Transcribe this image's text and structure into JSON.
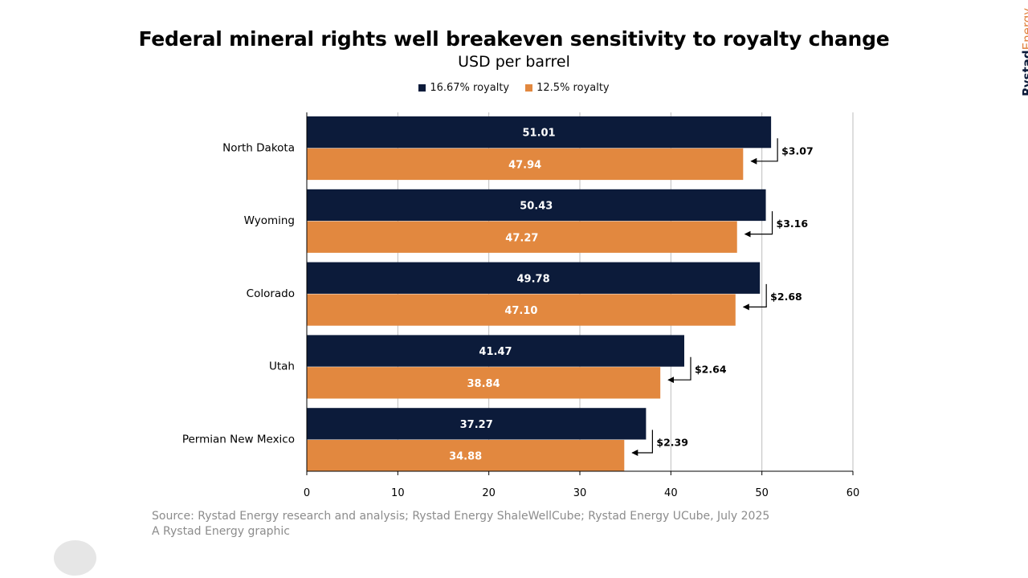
{
  "brand": {
    "main": "Rystad",
    "accent": "Energy"
  },
  "source": {
    "line1": "Source: Rystad Energy research and analysis; Rystad Energy ShaleWellCube; Rystad Energy UCube, July 2025",
    "line2": "A Rystad Energy graphic"
  },
  "colors": {
    "series1": "#0c1b3a",
    "series2": "#e2883f",
    "grid": "#bdbdbd"
  },
  "chart_data": {
    "type": "bar",
    "orientation": "horizontal",
    "title": "Federal mineral rights well breakeven sensitivity to royalty change",
    "subtitle": "USD per barrel",
    "categories": [
      "North Dakota",
      "Wyoming",
      "Colorado",
      "Utah",
      "Permian New Mexico"
    ],
    "series": [
      {
        "name": "16.67% royalty",
        "values": [
          51.01,
          50.43,
          49.78,
          41.47,
          37.27
        ]
      },
      {
        "name": "12.5% royalty",
        "values": [
          47.94,
          47.27,
          47.1,
          38.84,
          34.88
        ]
      }
    ],
    "data_labels": [
      [
        "51.01",
        "50.43",
        "49.78",
        "41.47",
        "37.27"
      ],
      [
        "47.94",
        "47.27",
        "47.10",
        "38.84",
        "34.88"
      ]
    ],
    "annotations": [
      "$3.07",
      "$3.16",
      "$2.68",
      "$2.64",
      "$2.39"
    ],
    "xlim": [
      0,
      60
    ],
    "xticks": [
      0,
      10,
      20,
      30,
      40,
      50,
      60
    ],
    "grid": "vertical",
    "legend": "top-center"
  }
}
